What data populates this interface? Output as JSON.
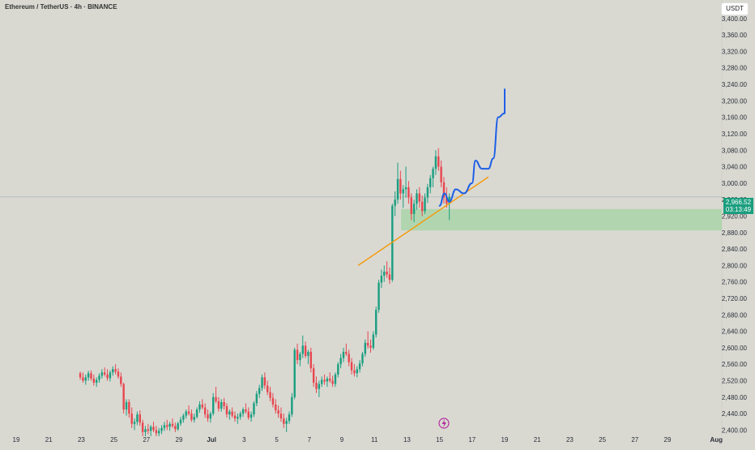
{
  "header": {
    "title": "Ethereum / TetherUS · 4h · BINANCE",
    "currency_button": "USDT"
  },
  "price_tag": {
    "price": "2,966.52",
    "countdown": "03:13:49"
  },
  "colors": {
    "up": "#1a9e80",
    "down": "#e8464f",
    "trendline": "#f59a0b",
    "projection": "#1e5fe6",
    "zone": "#a3d4a3",
    "price_line": "#9aa9b0",
    "event_icon": "#b52d9e"
  },
  "event_icon": "lightning-icon",
  "chart_data": {
    "type": "candlestick",
    "symbol": "ETHUSDT",
    "interval": "4h",
    "x_ticks": [
      "19",
      "21",
      "23",
      "25",
      "27",
      "29",
      "Jul",
      "3",
      "5",
      "7",
      "9",
      "11",
      "13",
      "15",
      "17",
      "19",
      "21",
      "23",
      "25",
      "27",
      "29",
      "Aug"
    ],
    "y_ticks": [
      3400,
      3360,
      3320,
      3280,
      3240,
      3200,
      3160,
      3120,
      3080,
      3040,
      3000,
      2960,
      2920,
      2880,
      2840,
      2800,
      2760,
      2720,
      2680,
      2640,
      2600,
      2560,
      2520,
      2480,
      2440,
      2400
    ],
    "ylim": [
      2385,
      3445
    ],
    "current_price": 2966.52,
    "annotations": {
      "support_zone": [
        2885,
        2937
      ],
      "trendline": {
        "from": {
          "date": "2025-07-10",
          "price": 2800
        },
        "to": {
          "date": "2025-07-18",
          "price": 3015
        }
      },
      "projection_path": [
        {
          "date": "2025-07-15",
          "price": 2945
        },
        {
          "date": "2025-07-15.3",
          "price": 2975
        },
        {
          "date": "2025-07-15.6",
          "price": 2955
        },
        {
          "date": "2025-07-16",
          "price": 2985
        },
        {
          "date": "2025-07-16.5",
          "price": 2975
        },
        {
          "date": "2025-07-17",
          "price": 3000
        },
        {
          "date": "2025-07-17.2",
          "price": 3055
        },
        {
          "date": "2025-07-17.6",
          "price": 3035
        },
        {
          "date": "2025-07-18",
          "price": 3035
        },
        {
          "date": "2025-07-18.3",
          "price": 3060
        },
        {
          "date": "2025-07-18.6",
          "price": 3160
        },
        {
          "date": "2025-07-19",
          "price": 3170
        },
        {
          "date": "2025-07-19",
          "price": 3228
        }
      ]
    },
    "candles": [
      [
        2538,
        2542,
        2522,
        2528
      ],
      [
        2528,
        2540,
        2515,
        2520
      ],
      [
        2520,
        2535,
        2510,
        2528
      ],
      [
        2528,
        2544,
        2520,
        2538
      ],
      [
        2538,
        2545,
        2520,
        2525
      ],
      [
        2525,
        2535,
        2508,
        2515
      ],
      [
        2515,
        2528,
        2505,
        2522
      ],
      [
        2522,
        2538,
        2515,
        2532
      ],
      [
        2532,
        2548,
        2525,
        2540
      ],
      [
        2540,
        2552,
        2530,
        2535
      ],
      [
        2535,
        2548,
        2520,
        2526
      ],
      [
        2526,
        2545,
        2518,
        2540
      ],
      [
        2540,
        2555,
        2532,
        2548
      ],
      [
        2548,
        2560,
        2535,
        2542
      ],
      [
        2542,
        2550,
        2525,
        2530
      ],
      [
        2530,
        2540,
        2505,
        2512
      ],
      [
        2512,
        2515,
        2440,
        2450
      ],
      [
        2450,
        2475,
        2435,
        2468
      ],
      [
        2468,
        2475,
        2430,
        2440
      ],
      [
        2440,
        2455,
        2405,
        2415
      ],
      [
        2415,
        2428,
        2400,
        2420
      ],
      [
        2420,
        2445,
        2412,
        2438
      ],
      [
        2438,
        2448,
        2410,
        2418
      ],
      [
        2418,
        2425,
        2385,
        2395
      ],
      [
        2395,
        2410,
        2385,
        2402
      ],
      [
        2402,
        2415,
        2390,
        2398
      ],
      [
        2398,
        2412,
        2385,
        2408
      ],
      [
        2408,
        2420,
        2395,
        2400
      ],
      [
        2400,
        2410,
        2385,
        2392
      ],
      [
        2392,
        2405,
        2385,
        2398
      ],
      [
        2398,
        2412,
        2390,
        2405
      ],
      [
        2405,
        2420,
        2398,
        2412
      ],
      [
        2412,
        2425,
        2400,
        2408
      ],
      [
        2408,
        2420,
        2398,
        2415
      ],
      [
        2415,
        2428,
        2405,
        2410
      ],
      [
        2410,
        2418,
        2395,
        2402
      ],
      [
        2402,
        2420,
        2398,
        2416
      ],
      [
        2416,
        2432,
        2410,
        2425
      ],
      [
        2425,
        2440,
        2418,
        2435
      ],
      [
        2435,
        2450,
        2428,
        2445
      ],
      [
        2445,
        2460,
        2435,
        2440
      ],
      [
        2440,
        2450,
        2420,
        2425
      ],
      [
        2425,
        2440,
        2418,
        2432
      ],
      [
        2432,
        2455,
        2428,
        2450
      ],
      [
        2450,
        2470,
        2442,
        2462
      ],
      [
        2462,
        2475,
        2450,
        2455
      ],
      [
        2455,
        2465,
        2430,
        2438
      ],
      [
        2438,
        2450,
        2420,
        2428
      ],
      [
        2428,
        2445,
        2418,
        2440
      ],
      [
        2440,
        2490,
        2435,
        2480
      ],
      [
        2480,
        2505,
        2465,
        2470
      ],
      [
        2470,
        2480,
        2445,
        2452
      ],
      [
        2452,
        2475,
        2445,
        2468
      ],
      [
        2468,
        2478,
        2450,
        2458
      ],
      [
        2458,
        2465,
        2430,
        2438
      ],
      [
        2438,
        2450,
        2425,
        2445
      ],
      [
        2445,
        2455,
        2430,
        2435
      ],
      [
        2435,
        2445,
        2420,
        2428
      ],
      [
        2428,
        2440,
        2415,
        2432
      ],
      [
        2432,
        2445,
        2425,
        2440
      ],
      [
        2440,
        2455,
        2432,
        2450
      ],
      [
        2450,
        2465,
        2440,
        2445
      ],
      [
        2445,
        2455,
        2425,
        2430
      ],
      [
        2430,
        2445,
        2420,
        2438
      ],
      [
        2438,
        2470,
        2432,
        2465
      ],
      [
        2465,
        2495,
        2458,
        2488
      ],
      [
        2488,
        2510,
        2478,
        2502
      ],
      [
        2502,
        2535,
        2495,
        2528
      ],
      [
        2528,
        2540,
        2500,
        2508
      ],
      [
        2508,
        2520,
        2485,
        2492
      ],
      [
        2492,
        2505,
        2470,
        2478
      ],
      [
        2478,
        2490,
        2455,
        2462
      ],
      [
        2462,
        2475,
        2440,
        2448
      ],
      [
        2448,
        2460,
        2430,
        2440
      ],
      [
        2440,
        2455,
        2420,
        2428
      ],
      [
        2428,
        2440,
        2405,
        2415
      ],
      [
        2415,
        2430,
        2395,
        2422
      ],
      [
        2422,
        2445,
        2415,
        2438
      ],
      [
        2438,
        2490,
        2432,
        2480
      ],
      [
        2480,
        2600,
        2475,
        2595
      ],
      [
        2595,
        2610,
        2560,
        2570
      ],
      [
        2570,
        2590,
        2555,
        2585
      ],
      [
        2585,
        2630,
        2575,
        2605
      ],
      [
        2605,
        2615,
        2575,
        2580
      ],
      [
        2580,
        2595,
        2560,
        2590
      ],
      [
        2590,
        2600,
        2540,
        2550
      ],
      [
        2550,
        2560,
        2505,
        2515
      ],
      [
        2515,
        2530,
        2490,
        2500
      ],
      [
        2500,
        2520,
        2480,
        2512
      ],
      [
        2512,
        2530,
        2505,
        2522
      ],
      [
        2522,
        2535,
        2510,
        2518
      ],
      [
        2518,
        2530,
        2505,
        2525
      ],
      [
        2525,
        2540,
        2515,
        2520
      ],
      [
        2520,
        2532,
        2505,
        2512
      ],
      [
        2512,
        2540,
        2505,
        2535
      ],
      [
        2535,
        2565,
        2528,
        2560
      ],
      [
        2560,
        2585,
        2550,
        2575
      ],
      [
        2575,
        2600,
        2565,
        2590
      ],
      [
        2590,
        2610,
        2580,
        2585
      ],
      [
        2585,
        2595,
        2555,
        2565
      ],
      [
        2565,
        2575,
        2535,
        2545
      ],
      [
        2545,
        2560,
        2530,
        2538
      ],
      [
        2538,
        2555,
        2528,
        2548
      ],
      [
        2548,
        2570,
        2540,
        2562
      ],
      [
        2562,
        2590,
        2555,
        2585
      ],
      [
        2585,
        2620,
        2578,
        2612
      ],
      [
        2612,
        2640,
        2598,
        2605
      ],
      [
        2605,
        2620,
        2588,
        2600
      ],
      [
        2600,
        2640,
        2595,
        2632
      ],
      [
        2632,
        2700,
        2625,
        2692
      ],
      [
        2692,
        2765,
        2685,
        2758
      ],
      [
        2758,
        2790,
        2745,
        2775
      ],
      [
        2775,
        2800,
        2760,
        2785
      ],
      [
        2785,
        2810,
        2770,
        2778
      ],
      [
        2778,
        2795,
        2755,
        2765
      ],
      [
        2765,
        2950,
        2760,
        2945
      ],
      [
        2945,
        2980,
        2920,
        2960
      ],
      [
        2960,
        3050,
        2950,
        3010
      ],
      [
        3010,
        3030,
        2960,
        2975
      ],
      [
        2975,
        2995,
        2940,
        2985
      ],
      [
        2985,
        3040,
        2965,
        2990
      ],
      [
        2990,
        3005,
        2950,
        2965
      ],
      [
        2965,
        2975,
        2910,
        2925
      ],
      [
        2925,
        2960,
        2905,
        2950
      ],
      [
        2950,
        2985,
        2935,
        2975
      ],
      [
        2975,
        2990,
        2940,
        2955
      ],
      [
        2955,
        2970,
        2920,
        2932
      ],
      [
        2932,
        2975,
        2925,
        2965
      ],
      [
        2965,
        2998,
        2952,
        2990
      ],
      [
        2990,
        3020,
        2975,
        3012
      ],
      [
        3012,
        3040,
        2990,
        3035
      ],
      [
        3035,
        3080,
        3020,
        3065
      ],
      [
        3065,
        3085,
        3030,
        3040
      ],
      [
        3040,
        3055,
        2990,
        3002
      ],
      [
        3002,
        3015,
        2950,
        2965
      ],
      [
        2965,
        2990,
        2940,
        2950
      ],
      [
        2950,
        2975,
        2910,
        2966.52
      ]
    ]
  }
}
